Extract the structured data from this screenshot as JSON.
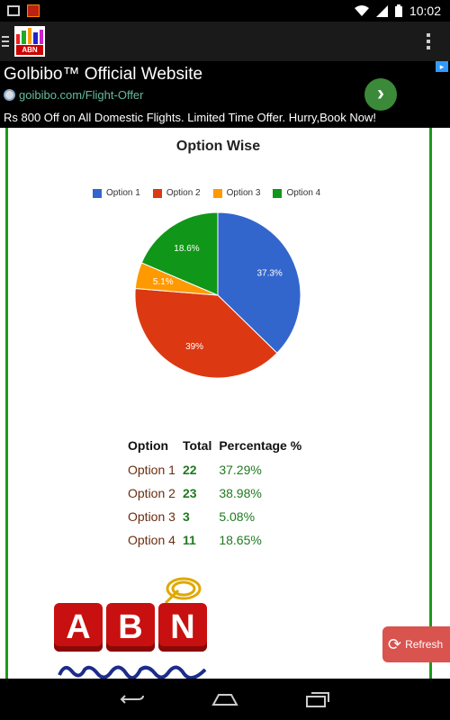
{
  "status_bar": {
    "time": "10:02"
  },
  "app_bar": {
    "logo_text": "ABN"
  },
  "ad": {
    "title": "Golbibo™ Official Website",
    "url": "goibibo.com/Flight-Offer",
    "description": "Rs 800 Off on All Domestic Flights. Limited Time Offer. Hurry,Book Now!"
  },
  "chart_data": {
    "type": "pie",
    "title": "Option Wise",
    "legend_position": "top",
    "categories": [
      "Option 1",
      "Option 2",
      "Option 3",
      "Option 4"
    ],
    "values": [
      37.3,
      39,
      5.1,
      18.6
    ],
    "labels": [
      "37.3%",
      "39%",
      "5.1%",
      "18.6%"
    ],
    "colors": [
      "#3366cc",
      "#dc3912",
      "#ff9900",
      "#109618"
    ]
  },
  "table": {
    "headers": [
      "Option",
      "Total",
      "Percentage %"
    ],
    "rows": [
      {
        "option": "Option 1",
        "total": "22",
        "percentage": "37.29%"
      },
      {
        "option": "Option 2",
        "total": "23",
        "percentage": "38.98%"
      },
      {
        "option": "Option 3",
        "total": "3",
        "percentage": "5.08%"
      },
      {
        "option": "Option 4",
        "total": "11",
        "percentage": "18.65%"
      }
    ]
  },
  "logo": {
    "letters": [
      "A",
      "B",
      "N"
    ]
  },
  "refresh_label": "Refresh"
}
